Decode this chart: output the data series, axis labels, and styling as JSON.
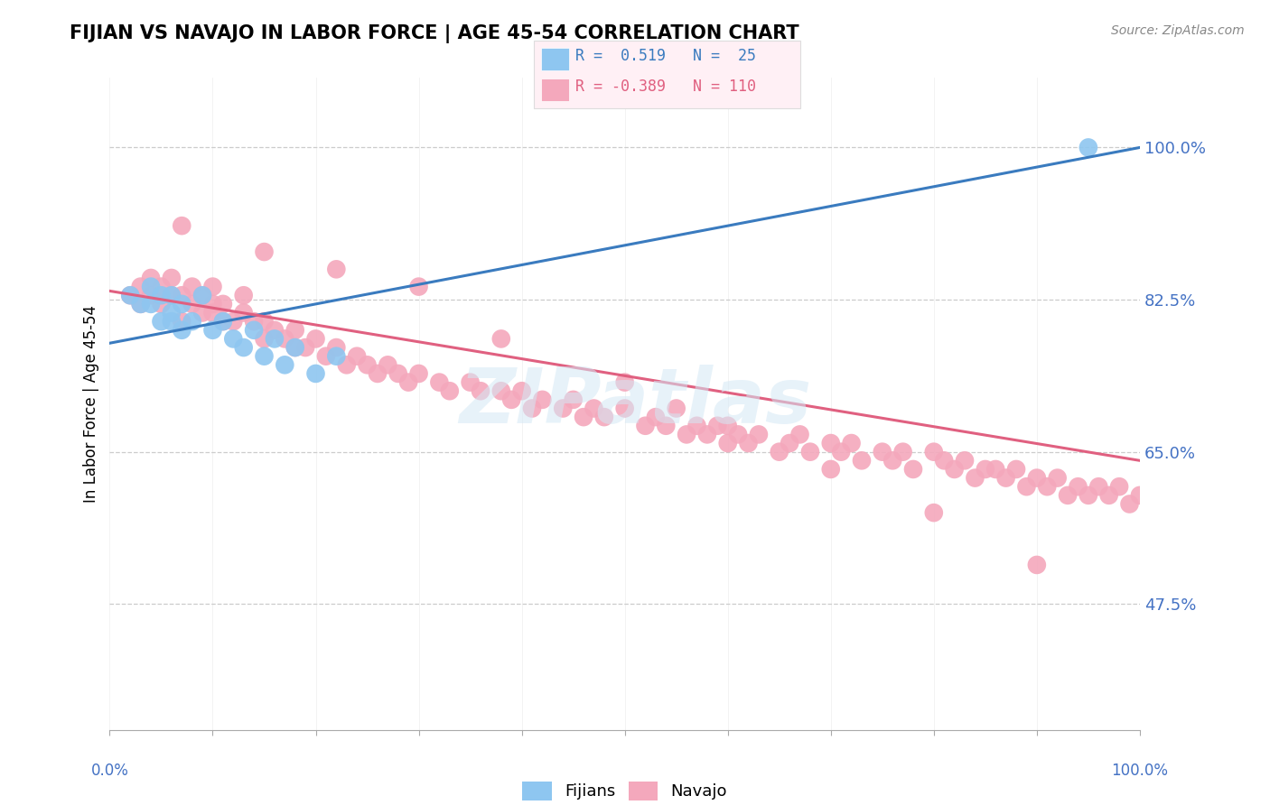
{
  "title": "FIJIAN VS NAVAJO IN LABOR FORCE | AGE 45-54 CORRELATION CHART",
  "source": "Source: ZipAtlas.com",
  "ylabel": "In Labor Force | Age 45-54",
  "ytick_labels": [
    "47.5%",
    "65.0%",
    "82.5%",
    "100.0%"
  ],
  "ytick_values": [
    0.475,
    0.65,
    0.825,
    1.0
  ],
  "xmin": 0.0,
  "xmax": 1.0,
  "ymin": 0.33,
  "ymax": 1.08,
  "fijian_color": "#8ec6f0",
  "navajo_color": "#f4a8bc",
  "fijian_line_color": "#3a7bbf",
  "navajo_line_color": "#e06080",
  "r_fijian": 0.519,
  "n_fijian": 25,
  "r_navajo": -0.389,
  "n_navajo": 110,
  "fijian_x": [
    0.02,
    0.03,
    0.04,
    0.04,
    0.05,
    0.05,
    0.06,
    0.06,
    0.06,
    0.07,
    0.07,
    0.08,
    0.09,
    0.1,
    0.11,
    0.12,
    0.13,
    0.14,
    0.15,
    0.16,
    0.17,
    0.18,
    0.2,
    0.22,
    0.95
  ],
  "fijian_y": [
    0.83,
    0.82,
    0.84,
    0.82,
    0.83,
    0.8,
    0.81,
    0.83,
    0.8,
    0.82,
    0.79,
    0.8,
    0.83,
    0.79,
    0.8,
    0.78,
    0.77,
    0.79,
    0.76,
    0.78,
    0.75,
    0.77,
    0.74,
    0.76,
    1.0
  ],
  "navajo_x": [
    0.02,
    0.03,
    0.03,
    0.04,
    0.04,
    0.05,
    0.05,
    0.06,
    0.06,
    0.07,
    0.07,
    0.08,
    0.08,
    0.09,
    0.09,
    0.1,
    0.1,
    0.1,
    0.11,
    0.11,
    0.12,
    0.13,
    0.13,
    0.14,
    0.15,
    0.15,
    0.16,
    0.17,
    0.18,
    0.18,
    0.19,
    0.2,
    0.21,
    0.22,
    0.23,
    0.24,
    0.25,
    0.26,
    0.27,
    0.28,
    0.29,
    0.3,
    0.32,
    0.33,
    0.35,
    0.36,
    0.38,
    0.39,
    0.4,
    0.41,
    0.42,
    0.44,
    0.45,
    0.46,
    0.47,
    0.48,
    0.5,
    0.52,
    0.53,
    0.54,
    0.55,
    0.56,
    0.57,
    0.58,
    0.59,
    0.6,
    0.61,
    0.62,
    0.63,
    0.65,
    0.66,
    0.67,
    0.68,
    0.7,
    0.71,
    0.72,
    0.73,
    0.75,
    0.76,
    0.77,
    0.78,
    0.8,
    0.81,
    0.82,
    0.83,
    0.84,
    0.85,
    0.86,
    0.87,
    0.88,
    0.89,
    0.9,
    0.91,
    0.92,
    0.93,
    0.94,
    0.95,
    0.96,
    0.97,
    0.98,
    0.99,
    1.0,
    0.07,
    0.15,
    0.22,
    0.3,
    0.38,
    0.5,
    0.6,
    0.7,
    0.8,
    0.9
  ],
  "navajo_y": [
    0.83,
    0.82,
    0.84,
    0.83,
    0.85,
    0.84,
    0.82,
    0.83,
    0.85,
    0.8,
    0.83,
    0.82,
    0.84,
    0.81,
    0.83,
    0.81,
    0.82,
    0.84,
    0.8,
    0.82,
    0.8,
    0.81,
    0.83,
    0.8,
    0.8,
    0.78,
    0.79,
    0.78,
    0.79,
    0.77,
    0.77,
    0.78,
    0.76,
    0.77,
    0.75,
    0.76,
    0.75,
    0.74,
    0.75,
    0.74,
    0.73,
    0.74,
    0.73,
    0.72,
    0.73,
    0.72,
    0.72,
    0.71,
    0.72,
    0.7,
    0.71,
    0.7,
    0.71,
    0.69,
    0.7,
    0.69,
    0.7,
    0.68,
    0.69,
    0.68,
    0.7,
    0.67,
    0.68,
    0.67,
    0.68,
    0.66,
    0.67,
    0.66,
    0.67,
    0.65,
    0.66,
    0.67,
    0.65,
    0.66,
    0.65,
    0.66,
    0.64,
    0.65,
    0.64,
    0.65,
    0.63,
    0.65,
    0.64,
    0.63,
    0.64,
    0.62,
    0.63,
    0.63,
    0.62,
    0.63,
    0.61,
    0.62,
    0.61,
    0.62,
    0.6,
    0.61,
    0.6,
    0.61,
    0.6,
    0.61,
    0.59,
    0.6,
    0.91,
    0.88,
    0.86,
    0.84,
    0.78,
    0.73,
    0.68,
    0.63,
    0.58,
    0.52
  ]
}
